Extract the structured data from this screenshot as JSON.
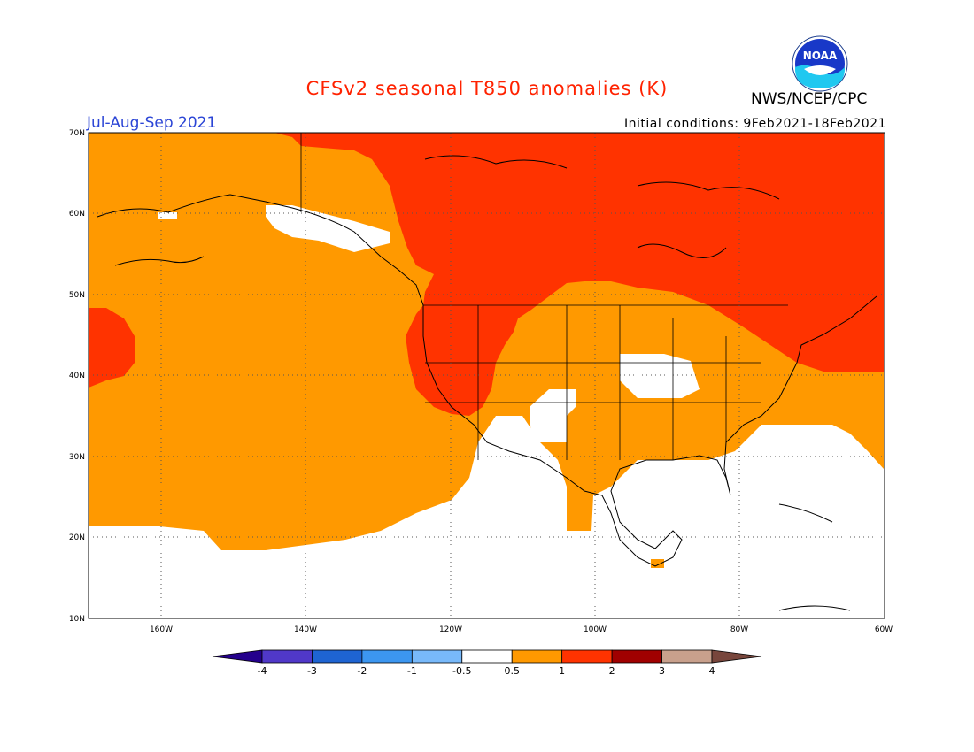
{
  "header": {
    "title": "CFSv2 seasonal T850 anomalies (K)",
    "agency": "NWS/NCEP/CPC",
    "period": "Jul-Aug-Sep 2021",
    "initial_conditions": "Initial conditions: 9Feb2021-18Feb2021",
    "logo_text": "NOAA"
  },
  "map": {
    "lat_labels": [
      "70N",
      "60N",
      "50N",
      "40N",
      "30N",
      "20N",
      "10N"
    ],
    "lon_labels": [
      "160W",
      "140W",
      "120W",
      "100W",
      "80W",
      "60W"
    ],
    "extent": {
      "lon_min": -170,
      "lon_max": -60,
      "lat_min": 10,
      "lat_max": 70
    },
    "colors": {
      "near_normal": "#ffffff",
      "anom_0_5_to_1": "#ff9900",
      "anom_1_to_2": "#ff3300",
      "land_outline": "#000000"
    }
  },
  "colorbar": {
    "labels": [
      "-4",
      "-3",
      "-2",
      "-1",
      "-0.5",
      "0.5",
      "1",
      "2",
      "3",
      "4"
    ],
    "colors": [
      "#24008c",
      "#5038c8",
      "#1e64d2",
      "#3c96f0",
      "#78b9fa",
      "#ffffff",
      "#ff9900",
      "#ff3300",
      "#a00000",
      "#c8a08c",
      "#78463c"
    ]
  }
}
